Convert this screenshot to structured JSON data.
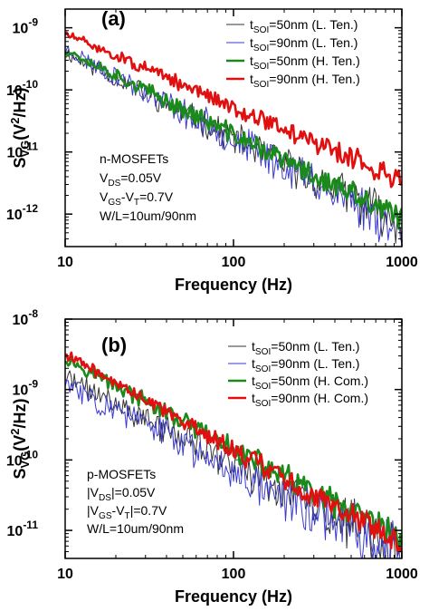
{
  "chart_data": [
    {
      "panel_label": "(a)",
      "type": "line",
      "xscale": "log",
      "yscale": "log",
      "xlim": [
        10,
        1000
      ],
      "ylim": [
        3e-13,
        2e-09
      ],
      "xlabel": "Frequency (Hz)",
      "ylabel": {
        "main": "S",
        "sub": "VG",
        "rest": "(V",
        "sup": "2",
        "tail": "/Hz)"
      },
      "x_ticks": [
        {
          "value": 10,
          "label": "10"
        },
        {
          "value": 100,
          "label": "100"
        },
        {
          "value": 1000,
          "label": "1000"
        }
      ],
      "y_ticks": [
        {
          "value": 1e-12,
          "base": "10",
          "exp": "-12"
        },
        {
          "value": 1e-11,
          "base": "10",
          "exp": "-11"
        },
        {
          "value": 1e-10,
          "base": "10",
          "exp": "-10"
        },
        {
          "value": 1e-09,
          "base": "10",
          "exp": "-9"
        }
      ],
      "legend_position": "top-right",
      "series": [
        {
          "name": {
            "main": "t",
            "sub": "SOI",
            "rest": "=50nm (L. Ten.)"
          },
          "color": "#333333",
          "width": 1,
          "start": 4e-10,
          "end": 7e-13,
          "noise": 0.18,
          "seed": 11
        },
        {
          "name": {
            "main": "t",
            "sub": "SOI",
            "rest": "=90nm (L. Ten.)"
          },
          "color": "#3a3ad0",
          "width": 1,
          "start": 4.5e-10,
          "end": 6e-13,
          "noise": 0.2,
          "seed": 23
        },
        {
          "name": {
            "main": "t",
            "sub": "SOI",
            "rest": "=50nm (H. Ten.)"
          },
          "color": "#1a8a1a",
          "width": 2.6,
          "start": 4.5e-10,
          "end": 8e-13,
          "noise": 0.12,
          "seed": 37
        },
        {
          "name": {
            "main": "t",
            "sub": "SOI",
            "rest": "=90nm (H. Ten.)"
          },
          "color": "#e01010",
          "width": 2.6,
          "start": 8e-10,
          "end": 3.5e-12,
          "noise": 0.1,
          "seed": 51
        }
      ],
      "annotation": [
        {
          "main": "n-MOSFETs"
        },
        {
          "main": "V",
          "sub": "DS",
          "rest": "=0.05V"
        },
        {
          "main": "V",
          "sub": "GS",
          "rest": "-V",
          "sub2": "T",
          "rest2": "=0.7V"
        },
        {
          "main": "W/L=10um/90nm"
        }
      ]
    },
    {
      "panel_label": "(b)",
      "type": "line",
      "xscale": "log",
      "yscale": "log",
      "xlim": [
        10,
        1000
      ],
      "ylim": [
        4e-12,
        1e-08
      ],
      "xlabel": "Frequency (Hz)",
      "ylabel": {
        "main": "S",
        "sub": "VG",
        "rest": "(V",
        "sup": "2",
        "tail": "/Hz)"
      },
      "x_ticks": [
        {
          "value": 10,
          "label": "10"
        },
        {
          "value": 100,
          "label": "100"
        },
        {
          "value": 1000,
          "label": "1000"
        }
      ],
      "y_ticks": [
        {
          "value": 1e-11,
          "base": "10",
          "exp": "-11"
        },
        {
          "value": 1e-10,
          "base": "10",
          "exp": "-10"
        },
        {
          "value": 1e-09,
          "base": "10",
          "exp": "-9"
        },
        {
          "value": 1e-08,
          "base": "10",
          "exp": "-8"
        }
      ],
      "legend_position": "top-right",
      "series": [
        {
          "name": {
            "main": "t",
            "sub": "SOI",
            "rest": "=50nm (L. Ten.)"
          },
          "color": "#333333",
          "width": 1,
          "start": 1.5e-09,
          "end": 5e-12,
          "noise": 0.2,
          "seed": 71
        },
        {
          "name": {
            "main": "t",
            "sub": "SOI",
            "rest": "=90nm (L. Ten.)"
          },
          "color": "#3a3ad0",
          "width": 1,
          "start": 1.2e-09,
          "end": 4.5e-12,
          "noise": 0.22,
          "seed": 83
        },
        {
          "name": {
            "main": "t",
            "sub": "SOI",
            "rest": "=50nm (H. Com.)"
          },
          "color": "#1a8a1a",
          "width": 2.6,
          "start": 2.8e-09,
          "end": 7e-12,
          "noise": 0.12,
          "seed": 97
        },
        {
          "name": {
            "main": "t",
            "sub": "SOI",
            "rest": "=90nm (H. Com.)"
          },
          "color": "#e01010",
          "width": 2.6,
          "start": 3.2e-09,
          "end": 6e-12,
          "noise": 0.1,
          "seed": 109
        }
      ],
      "annotation": [
        {
          "main": "p-MOSFETs"
        },
        {
          "main": "|V",
          "sub": "DS",
          "rest": "|=0.05V"
        },
        {
          "main": "|V",
          "sub": "GS",
          "rest": "-V",
          "sub2": "T",
          "rest2": "|=0.7V"
        },
        {
          "main": "W/L=10um/90nm"
        }
      ]
    }
  ]
}
